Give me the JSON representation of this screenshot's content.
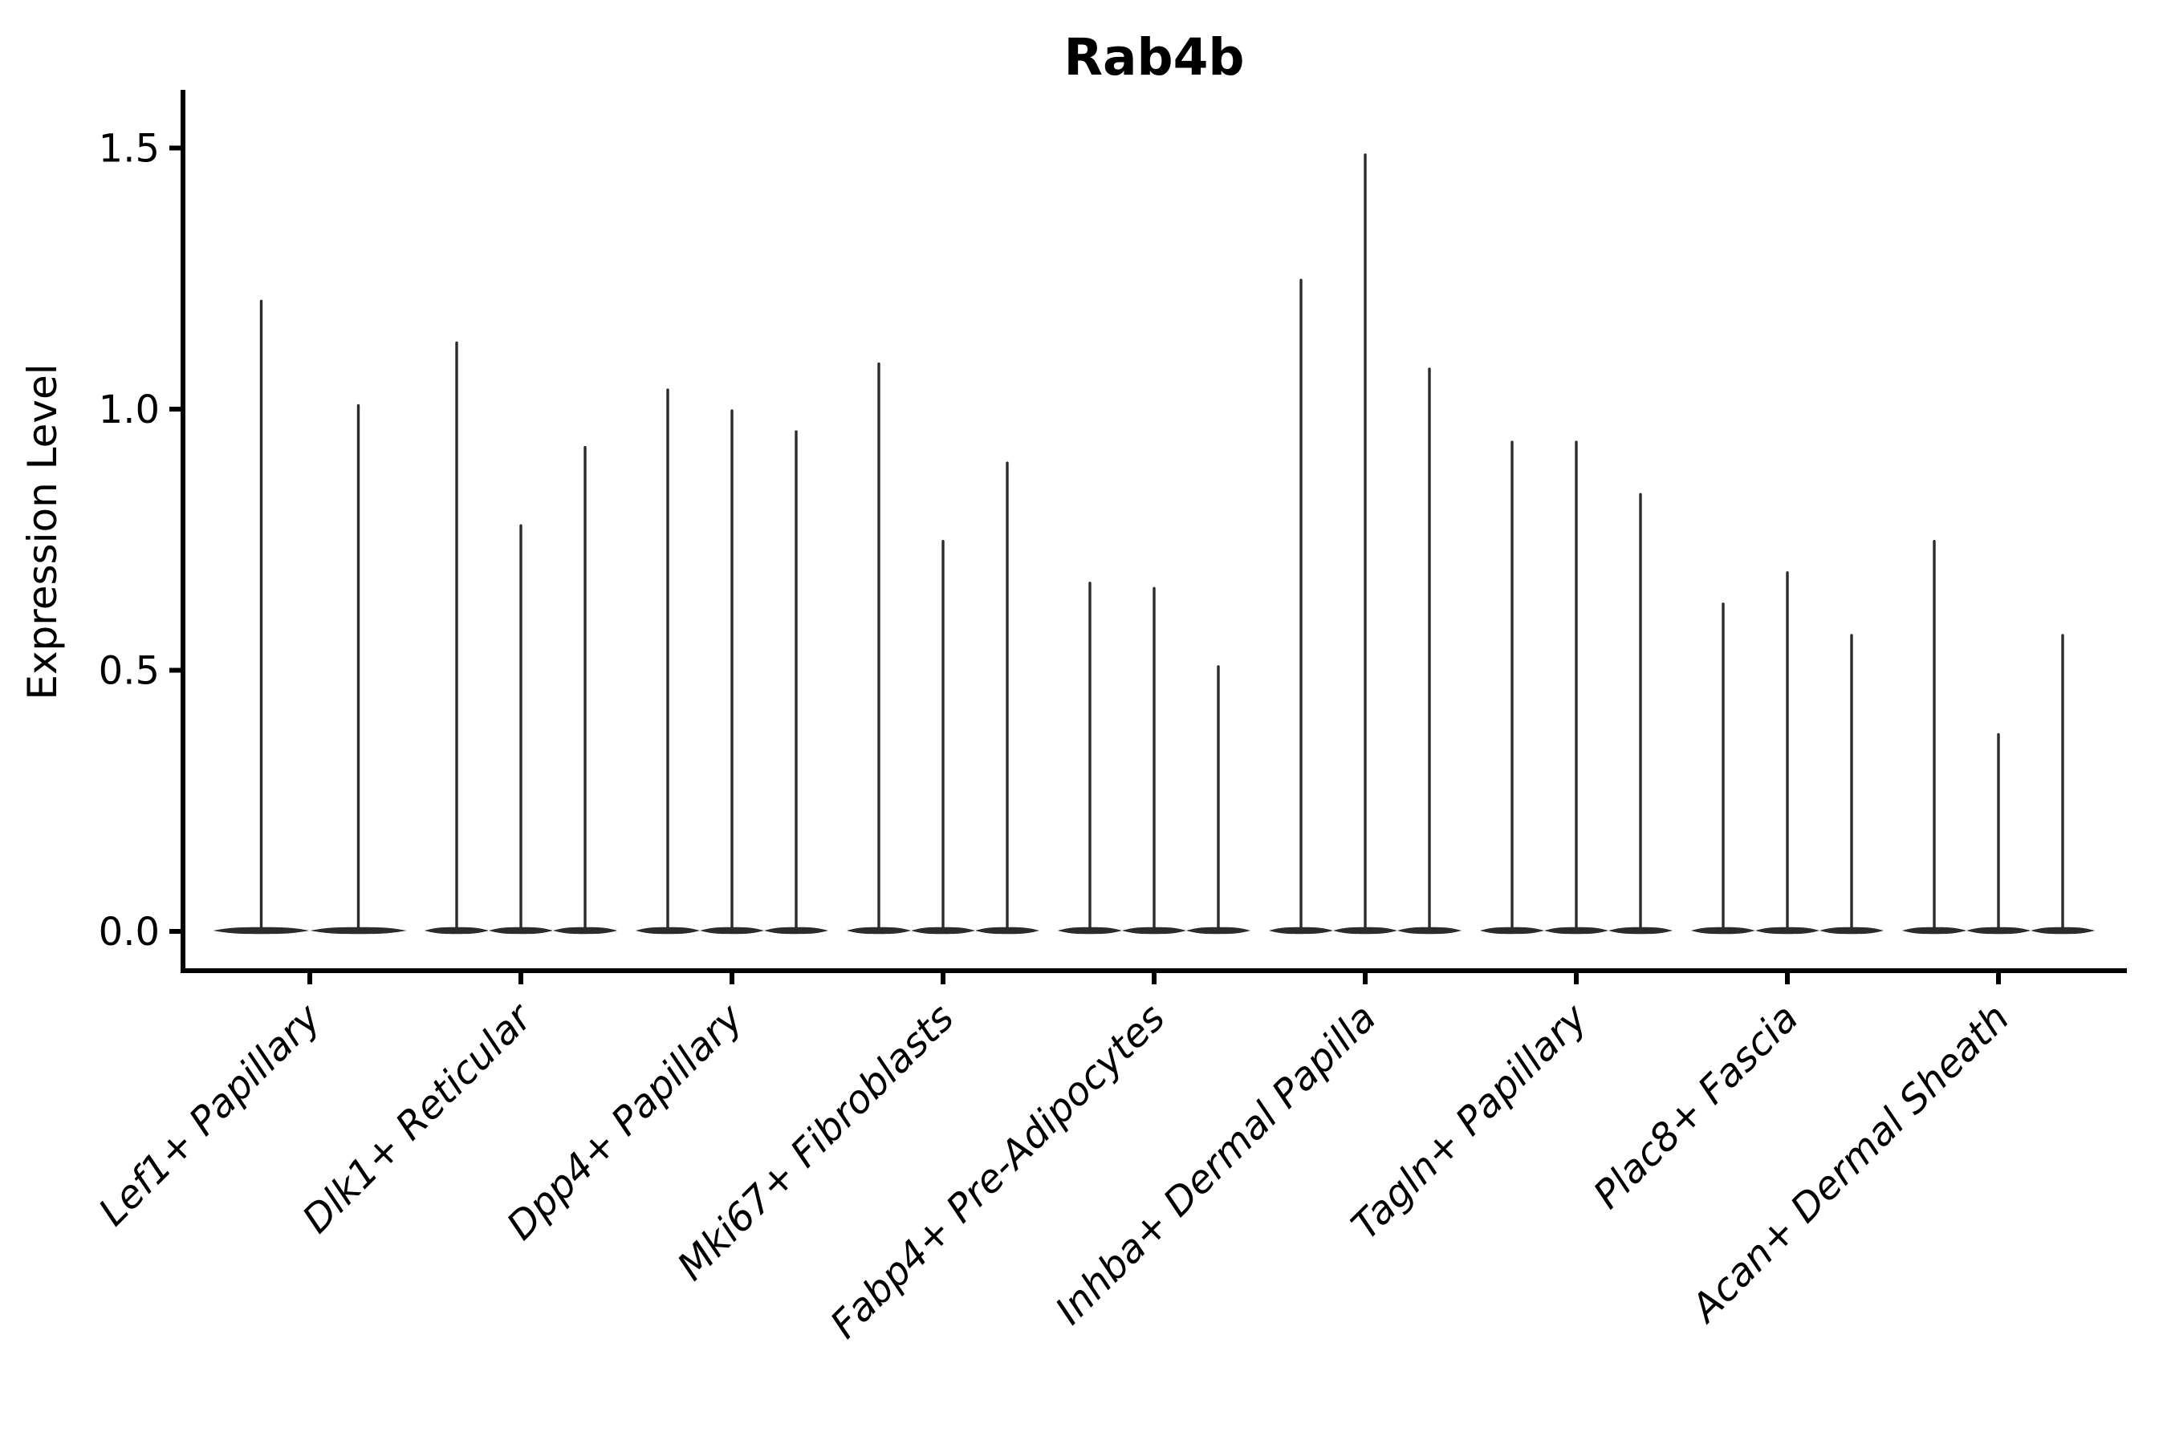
{
  "figure": {
    "title": "Rab4b"
  },
  "colors": {
    "background": "#ffffff",
    "violin_line": "#2b2b2b",
    "axis_line": "#000000",
    "text": "#000000"
  },
  "chart_data": {
    "type": "violin",
    "title": "Rab4b",
    "xlabel": "",
    "ylabel": "Expression Level",
    "yticks": [
      0.0,
      0.5,
      1.0,
      1.5
    ],
    "ylim": [
      -0.08,
      1.6
    ],
    "grid": false,
    "legend": "none",
    "note": "Single-cell expression violin plot; each category holds thin spike-shaped violins whose bulk sits at 0 and whose tip marks the maximum expression value",
    "categories": [
      "Lef1+ Papillary",
      "Dlk1+ Reticular",
      "Dpp4+ Papillary",
      "Mki67+ Fibroblasts",
      "Fabp4+ Pre-Adipocytes",
      "Inhba+ Dermal Papilla",
      "Tagln+ Papillary",
      "Plac8+ Fascia",
      "Acan+ Dermal Sheath"
    ],
    "series": [
      {
        "name": "Lef1+ Papillary",
        "values": [
          1.21,
          1.01
        ]
      },
      {
        "name": "Dlk1+ Reticular",
        "values": [
          1.13,
          0.78,
          0.93
        ]
      },
      {
        "name": "Dpp4+ Papillary",
        "values": [
          1.04,
          1.0,
          0.96
        ]
      },
      {
        "name": "Mki67+ Fibroblasts",
        "values": [
          1.09,
          0.75,
          0.9
        ]
      },
      {
        "name": "Fabp4+ Pre-Adipocytes",
        "values": [
          0.67,
          0.66,
          0.51
        ]
      },
      {
        "name": "Inhba+ Dermal Papilla",
        "values": [
          1.25,
          1.49,
          1.08
        ]
      },
      {
        "name": "Tagln+ Papillary",
        "values": [
          0.94,
          0.94,
          0.84
        ]
      },
      {
        "name": "Plac8+ Fascia",
        "values": [
          0.63,
          0.69,
          0.57
        ]
      },
      {
        "name": "Acan+ Dermal Sheath",
        "values": [
          0.75,
          0.38,
          0.57
        ]
      }
    ]
  }
}
